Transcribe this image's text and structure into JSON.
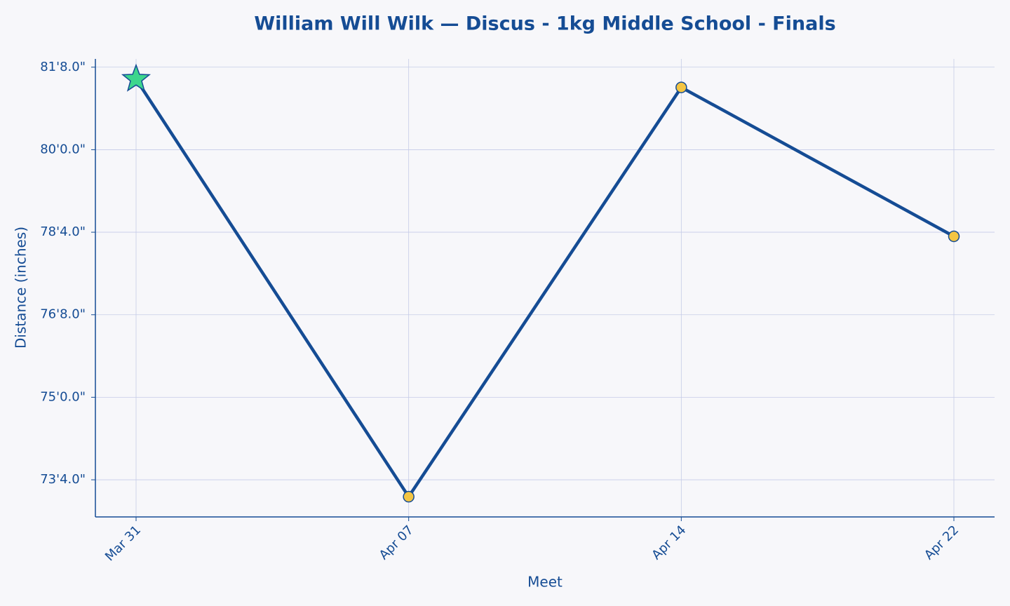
{
  "chart_data": {
    "type": "line",
    "title": "William Will Wilk — Discus - 1kg Middle School - Finals",
    "x_label": "Meet",
    "y_label": "Distance (inches)",
    "categories": [
      "Mar 31",
      "Apr 07",
      "Apr 14",
      "Apr 22"
    ],
    "series": [
      {
        "name": "Distance",
        "color": "#154c94",
        "values": [
          977.1,
          875.9,
          975.1,
          939.0
        ]
      }
    ],
    "marker_color": "#f4c542",
    "best_marker_color": "#3dd68c",
    "ylim": [
      871.0,
      982.0
    ],
    "yticks": [
      {
        "value": 880,
        "label": "73'4.0\""
      },
      {
        "value": 900,
        "label": "75'0.0\""
      },
      {
        "value": 920,
        "label": "76'8.0\""
      },
      {
        "value": 940,
        "label": "78'4.0\""
      },
      {
        "value": 960,
        "label": "80'0.0\""
      },
      {
        "value": 980,
        "label": "81'8.0\""
      }
    ],
    "grid": true
  }
}
